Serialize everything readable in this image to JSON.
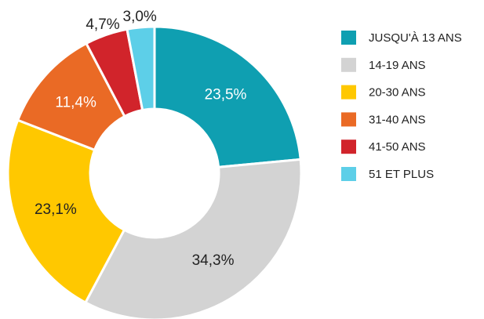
{
  "chart_data": {
    "type": "donut",
    "categories": [
      "JUSQU'À 13 ANS",
      "14-19 ANS",
      "20-30 ANS",
      "31-40 ANS",
      "41-50 ANS",
      "51 ET PLUS"
    ],
    "values": [
      23.5,
      34.3,
      23.1,
      11.4,
      4.7,
      3.0
    ],
    "value_labels": [
      "23,5%",
      "34,3%",
      "23,1%",
      "11,4%",
      "4,7%",
      "3,0%"
    ],
    "colors": [
      "#0f9fb1",
      "#d3d3d3",
      "#ffc800",
      "#ea6a25",
      "#d1242b",
      "#5dcfe8"
    ],
    "legend": "right"
  }
}
